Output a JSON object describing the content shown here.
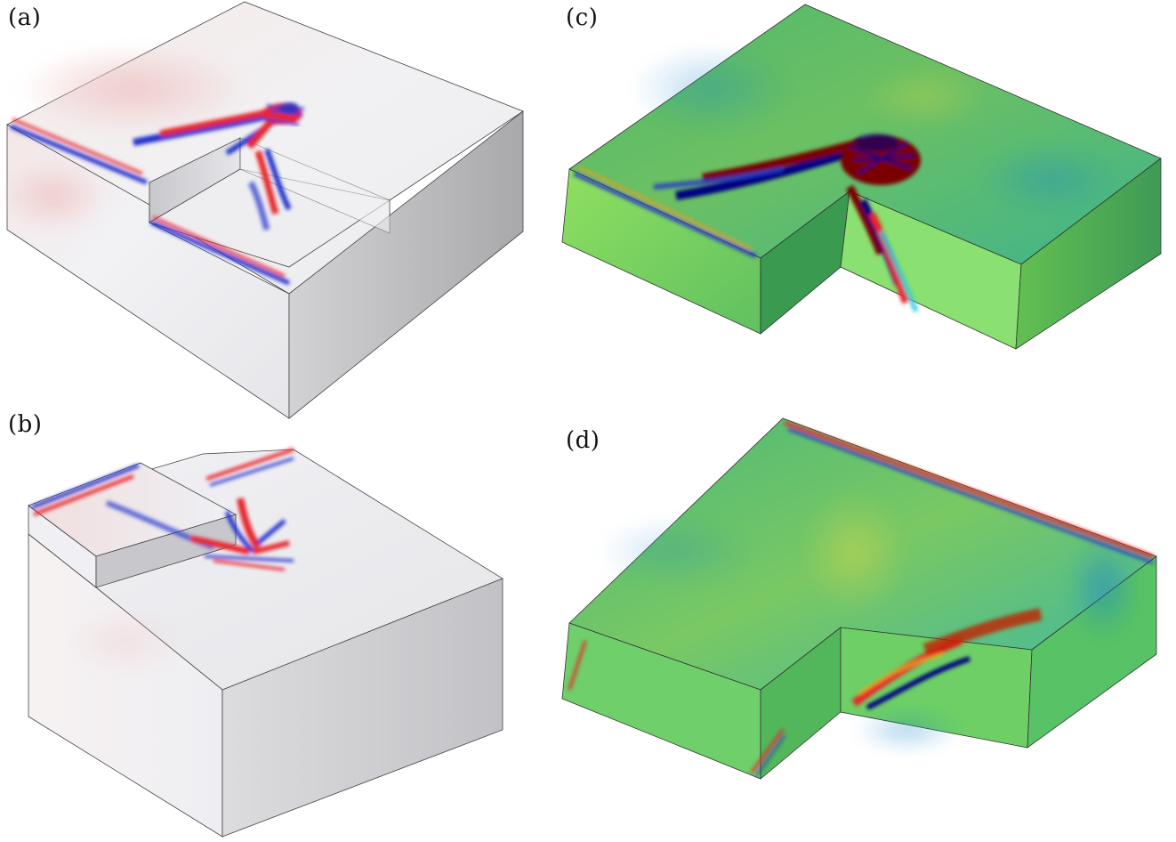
{
  "panels": [
    {
      "id": "a",
      "label": "(a)"
    },
    {
      "id": "b",
      "label": "(b)"
    },
    {
      "id": "c",
      "label": "(c)"
    },
    {
      "id": "d",
      "label": "(d)"
    }
  ],
  "colors": {
    "red": "#e8262a",
    "blue": "#2233cc",
    "dark_red": "#7a0000",
    "dark_blue": "#000080",
    "green": "#7cc85a",
    "cyan": "#28c8e0",
    "yellow": "#f0e040"
  }
}
